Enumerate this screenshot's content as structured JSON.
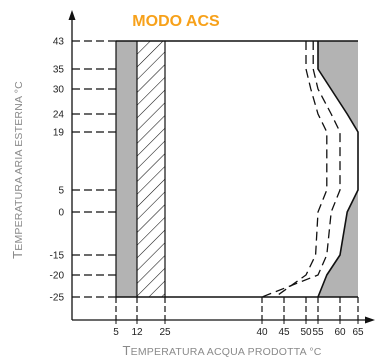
{
  "chart_data": {
    "type": "area",
    "title": "MODO ACS",
    "xlabel": {
      "first": "T",
      "rest": "EMPERATURA ACQUA PRODOTTA °C"
    },
    "ylabel": {
      "first": "T",
      "rest": "EMPERATURA ARIA ESTERNA °C"
    },
    "x_ticks": [
      5,
      12,
      25,
      40,
      45,
      50,
      55,
      60,
      65
    ],
    "y_ticks": [
      43,
      35,
      30,
      24,
      19,
      5,
      0,
      -15,
      -20,
      -25
    ],
    "xlim": [
      0,
      67
    ],
    "ylim": [
      -25,
      43
    ],
    "grid": false,
    "regions": [
      {
        "name": "gray-band-left",
        "fill": "#b3b3b3",
        "polygon": [
          [
            5,
            -25
          ],
          [
            12,
            -25
          ],
          [
            12,
            43
          ],
          [
            5,
            43
          ]
        ]
      },
      {
        "name": "hatched-band",
        "fill": "hatch",
        "polygon": [
          [
            12,
            -25
          ],
          [
            25,
            -25
          ],
          [
            25,
            43
          ],
          [
            12,
            43
          ]
        ]
      },
      {
        "name": "gray-region-right",
        "fill": "#b3b3b3",
        "polygon": [
          [
            55,
            43
          ],
          [
            65,
            43
          ],
          [
            65,
            5
          ],
          [
            62,
            0
          ],
          [
            60,
            -15
          ],
          [
            57,
            -20
          ],
          [
            55,
            -25
          ],
          [
            65,
            -25
          ],
          [
            65,
            43
          ]
        ]
      },
      {
        "name": "gray-region-right-top",
        "fill": "#b3b3b3",
        "polygon": [
          [
            55,
            43
          ],
          [
            65,
            43
          ],
          [
            65,
            19
          ],
          [
            62,
            24
          ],
          [
            55,
            35
          ]
        ]
      }
    ],
    "solid_boundary": [
      [
        55,
        43
      ],
      [
        55,
        35
      ],
      [
        62,
        24
      ],
      [
        65,
        19
      ],
      [
        65,
        5
      ],
      [
        62,
        0
      ],
      [
        60,
        -15
      ],
      [
        57,
        -20
      ],
      [
        55,
        -25
      ]
    ],
    "dashed_lines": [
      {
        "name": "dashed-line-inner",
        "points": [
          [
            50,
            43
          ],
          [
            50,
            35
          ],
          [
            52,
            30
          ],
          [
            55,
            24
          ],
          [
            57,
            19
          ],
          [
            57,
            5
          ],
          [
            55,
            0
          ],
          [
            54,
            -15
          ],
          [
            50,
            -20
          ],
          [
            43,
            -25
          ]
        ]
      },
      {
        "name": "dashed-line-outer",
        "points": [
          [
            53,
            43
          ],
          [
            53,
            35
          ],
          [
            55,
            30
          ],
          [
            58,
            24
          ],
          [
            60,
            19
          ],
          [
            60,
            5
          ],
          [
            58,
            0
          ],
          [
            57,
            -15
          ],
          [
            55,
            -20
          ],
          [
            40,
            -25
          ]
        ]
      }
    ],
    "colors": {
      "title": "#f7a11a",
      "gray": "#b3b3b3",
      "line": "#111111",
      "axis_label": "#8a8a8a"
    }
  }
}
